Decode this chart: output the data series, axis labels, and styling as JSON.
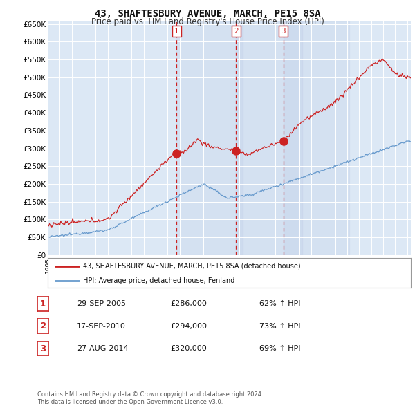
{
  "title": "43, SHAFTESBURY AVENUE, MARCH, PE15 8SA",
  "subtitle": "Price paid vs. HM Land Registry's House Price Index (HPI)",
  "ylim": [
    0,
    650000
  ],
  "yticks": [
    0,
    50000,
    100000,
    150000,
    200000,
    250000,
    300000,
    350000,
    400000,
    450000,
    500000,
    550000,
    600000,
    650000
  ],
  "ytick_labels": [
    "£0",
    "£50K",
    "£100K",
    "£150K",
    "£200K",
    "£250K",
    "£300K",
    "£350K",
    "£400K",
    "£450K",
    "£500K",
    "£550K",
    "£600K",
    "£650K"
  ],
  "background_color": "#ffffff",
  "plot_bg_color": "#dce8f5",
  "shaded_bg_color": "#c8dcf0",
  "grid_color": "#ffffff",
  "red_line_color": "#cc2222",
  "blue_line_color": "#6699cc",
  "vline_color": "#cc2222",
  "sale_markers": [
    {
      "t": 10.75,
      "price": 286000,
      "label": "1"
    },
    {
      "t": 15.72,
      "price": 294000,
      "label": "2"
    },
    {
      "t": 19.66,
      "price": 320000,
      "label": "3"
    }
  ],
  "legend_entries": [
    {
      "color": "#cc2222",
      "label": "43, SHAFTESBURY AVENUE, MARCH, PE15 8SA (detached house)"
    },
    {
      "color": "#6699cc",
      "label": "HPI: Average price, detached house, Fenland"
    }
  ],
  "table_data": [
    {
      "num": "1",
      "date": "29-SEP-2005",
      "price": "£286,000",
      "hpi": "62% ↑ HPI"
    },
    {
      "num": "2",
      "date": "17-SEP-2010",
      "price": "£294,000",
      "hpi": "73% ↑ HPI"
    },
    {
      "num": "3",
      "date": "27-AUG-2014",
      "price": "£320,000",
      "hpi": "69% ↑ HPI"
    }
  ],
  "footer": "Contains HM Land Registry data © Crown copyright and database right 2024.\nThis data is licensed under the Open Government Licence v3.0.",
  "x_start_year": 1995,
  "x_end_year": 2025
}
